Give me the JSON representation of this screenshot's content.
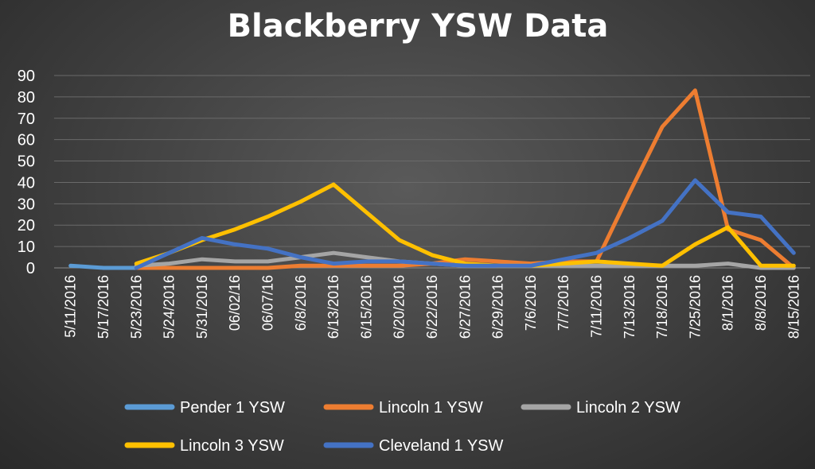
{
  "chart_data": {
    "type": "line",
    "title": "Blackberry YSW Data",
    "xlabel": "",
    "ylabel": "",
    "ylim": [
      0,
      90
    ],
    "yticks": [
      0,
      10,
      20,
      30,
      40,
      50,
      60,
      70,
      80,
      90
    ],
    "grid": true,
    "legend_position": "bottom",
    "categories": [
      "5/11/2016",
      "5/17/2016",
      "5/23/2016",
      "5/24/2016",
      "5/31/2016",
      "06/02/16",
      "06/07/16",
      "6/8/2016",
      "6/13/2016",
      "6/15/2016",
      "6/20/2016",
      "6/22/2016",
      "6/27/2016",
      "6/29/2016",
      "7/6/2016",
      "7/7/2016",
      "7/11/2016",
      "7/13/2016",
      "7/18/2016",
      "7/25/2016",
      "8/1/2016",
      "8/8/2016",
      "8/15/2016"
    ],
    "series": [
      {
        "name": "Pender 1 YSW",
        "color": "#5b9bd5",
        "values": [
          1,
          0,
          0,
          null,
          null,
          null,
          null,
          null,
          null,
          null,
          null,
          null,
          null,
          null,
          null,
          null,
          null,
          null,
          null,
          null,
          null,
          null,
          null
        ]
      },
      {
        "name": "Lincoln 1 YSW",
        "color": "#ed7d31",
        "values": [
          null,
          null,
          0,
          0,
          0,
          0,
          0,
          1,
          1,
          1,
          1,
          2,
          4,
          3,
          2,
          3,
          3,
          35,
          66,
          83,
          18,
          13,
          0
        ]
      },
      {
        "name": "Lincoln 2 YSW",
        "color": "#a5a5a5",
        "values": [
          null,
          null,
          1,
          2,
          4,
          3,
          3,
          5,
          7,
          5,
          3,
          2,
          1,
          1,
          1,
          1,
          1,
          1,
          1,
          1,
          2,
          0,
          0
        ]
      },
      {
        "name": "Lincoln 3 YSW",
        "color": "#ffc000",
        "values": [
          null,
          null,
          2,
          7,
          13,
          18,
          24,
          31,
          39,
          26,
          13,
          6,
          2,
          1,
          1,
          2,
          3,
          2,
          1,
          11,
          19,
          1,
          1
        ]
      },
      {
        "name": "Cleveland 1 YSW",
        "color": "#4472c4",
        "values": [
          null,
          null,
          0,
          7,
          14,
          11,
          9,
          5,
          2,
          3,
          3,
          2,
          1,
          1,
          1,
          4,
          7,
          14,
          22,
          41,
          26,
          24,
          7
        ]
      }
    ]
  }
}
